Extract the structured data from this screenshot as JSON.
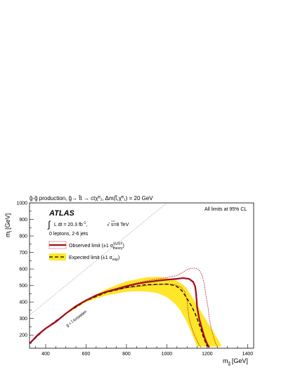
{
  "chart_data": {
    "type": "line",
    "title": "g̃-g̃ production, g̃→ t̃t → ctχ̃⁰₁, Δm(t̃,χ̃⁰₁) = 20 GeV",
    "xlabel": "m",
    "xlabel_sub": "g̃",
    "xlabel_unit": "[GeV]",
    "ylabel": "m",
    "ylabel_sub": "t̃",
    "ylabel_unit": "[GeV]",
    "xlim": [
      320,
      1430
    ],
    "ylim": [
      120,
      1000
    ],
    "x_ticks": [
      400,
      600,
      800,
      1000,
      1200,
      1400
    ],
    "y_ticks": [
      200,
      300,
      400,
      500,
      600,
      700,
      800,
      900,
      1000
    ],
    "grid": false,
    "experiment": "ATLAS",
    "lumi_prefix": "L dt = 20.3 fb",
    "lumi_sup": "-1",
    "lumi_comma": ",",
    "energy": "s=8 TeV",
    "selection": "0 leptons, 2-6 jets",
    "cl_note": "All limits at 95% CL",
    "kinematic_label": "g̃ < t̃ forbidden",
    "legend_position": "upper-left",
    "colors": {
      "observed": "#a50e1e",
      "expected": "#000000",
      "band": "#ffe629",
      "diagonal": "#999999"
    },
    "legend": {
      "observed": "Observed limit (±1 σ",
      "observed_sup": "SUSY",
      "observed_sub": "theory",
      "expected": "Expected limit (±1 σ",
      "expected_sub": "exp"
    },
    "series": [
      {
        "name": "Observed limit",
        "role": "observed",
        "x": [
          322,
          360,
          400,
          450,
          500,
          550,
          600,
          650,
          700,
          750,
          800,
          850,
          900,
          950,
          1000,
          1050,
          1080,
          1110,
          1130,
          1140,
          1145,
          1150,
          1160,
          1170,
          1180,
          1190,
          1200,
          1210
        ],
        "y": [
          150,
          200,
          240,
          280,
          330,
          375,
          410,
          440,
          462,
          478,
          495,
          510,
          520,
          528,
          535,
          540,
          545,
          540,
          522,
          495,
          450,
          370,
          300,
          255,
          210,
          175,
          145,
          125
        ]
      },
      {
        "name": "Observed limit +1σ",
        "role": "observed_plus",
        "x": [
          322,
          400,
          500,
          600,
          700,
          800,
          900,
          1000,
          1050,
          1080,
          1100,
          1120,
          1140,
          1155,
          1165,
          1175,
          1185,
          1195,
          1205,
          1210,
          1220,
          1230,
          1240,
          1250
        ],
        "y": [
          150,
          240,
          330,
          410,
          465,
          500,
          528,
          548,
          560,
          580,
          597,
          604,
          604,
          598,
          585,
          560,
          510,
          430,
          360,
          300,
          240,
          195,
          155,
          130
        ]
      },
      {
        "name": "Observed limit -1σ",
        "role": "observed_minus",
        "x": [
          322,
          400,
          500,
          600,
          700,
          800,
          900,
          950,
          1000,
          1040,
          1070,
          1090,
          1100,
          1105,
          1110,
          1120,
          1130,
          1140,
          1150,
          1160,
          1170
        ],
        "y": [
          150,
          240,
          330,
          410,
          460,
          485,
          500,
          505,
          508,
          505,
          490,
          460,
          410,
          350,
          300,
          255,
          220,
          190,
          165,
          140,
          125
        ]
      },
      {
        "name": "Expected limit",
        "role": "expected",
        "x": [
          322,
          400,
          500,
          600,
          700,
          800,
          900,
          1000,
          1040,
          1060,
          1080,
          1100,
          1120,
          1130,
          1140,
          1150,
          1160,
          1170,
          1180,
          1190,
          1200
        ],
        "y": [
          150,
          240,
          330,
          408,
          458,
          488,
          505,
          508,
          500,
          485,
          460,
          420,
          380,
          355,
          330,
          300,
          265,
          230,
          190,
          160,
          130
        ]
      },
      {
        "name": "Expected band upper",
        "role": "band_upper",
        "x": [
          322,
          400,
          500,
          600,
          700,
          800,
          900,
          950,
          1000,
          1050,
          1080,
          1100,
          1120,
          1140,
          1160,
          1180,
          1200,
          1220,
          1240,
          1260,
          1270
        ],
        "y": [
          150,
          240,
          330,
          415,
          478,
          525,
          550,
          552,
          545,
          528,
          505,
          480,
          440,
          400,
          360,
          320,
          280,
          240,
          200,
          160,
          130
        ]
      },
      {
        "name": "Expected band lower",
        "role": "band_lower",
        "x": [
          322,
          400,
          500,
          600,
          700,
          800,
          850,
          900,
          950,
          1000,
          1040,
          1070,
          1080,
          1090,
          1100,
          1110,
          1120,
          1130,
          1140,
          1150
        ],
        "y": [
          150,
          240,
          325,
          400,
          440,
          462,
          465,
          463,
          455,
          430,
          390,
          345,
          320,
          300,
          275,
          250,
          220,
          190,
          160,
          130
        ]
      },
      {
        "name": "Kinematic limit",
        "role": "diagonal",
        "x": [
          320,
          1000
        ],
        "y": [
          320,
          1000
        ]
      }
    ]
  }
}
